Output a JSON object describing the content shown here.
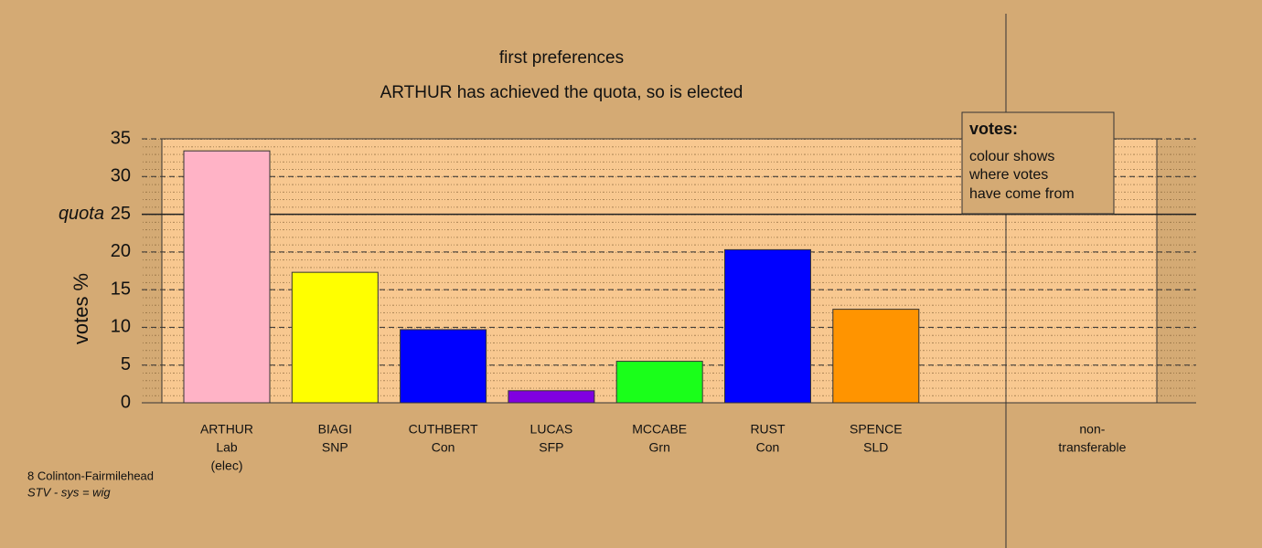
{
  "chart_data": {
    "type": "bar",
    "title": "first preferences",
    "subtitle": "ARTHUR has achieved the quota, so is elected",
    "y_label": "votes %",
    "categories": [
      [
        "ARTHUR",
        "Lab",
        "(elec)"
      ],
      [
        "BIAGI",
        "SNP"
      ],
      [
        "CUTHBERT",
        "Con"
      ],
      [
        "LUCAS",
        "SFP"
      ],
      [
        "MCCABE",
        "Grn"
      ],
      [
        "RUST",
        "Con"
      ],
      [
        "SPENCE",
        "SLD"
      ],
      null,
      [
        "non-",
        "transferable"
      ]
    ],
    "values": [
      33.4,
      17.3,
      9.7,
      1.6,
      5.5,
      20.3,
      12.4,
      null,
      0
    ],
    "colors": [
      "#ffb3c6",
      "#ffff00",
      "#0000ff",
      "#8000e0",
      "#1aff1a",
      "#0000ff",
      "#ff9400",
      null,
      "#888888"
    ],
    "ylim": [
      0,
      35
    ],
    "yticks": [
      0,
      5,
      10,
      15,
      20,
      25,
      30,
      35
    ],
    "grid": true,
    "quota": {
      "value": 25,
      "label": "quota"
    },
    "legend_box": {
      "title": "votes:",
      "lines": [
        "colour shows",
        "where votes",
        "have come from"
      ]
    },
    "footer": [
      "8 Colinton-Fairmilehead",
      "STV - sys = wig"
    ]
  }
}
